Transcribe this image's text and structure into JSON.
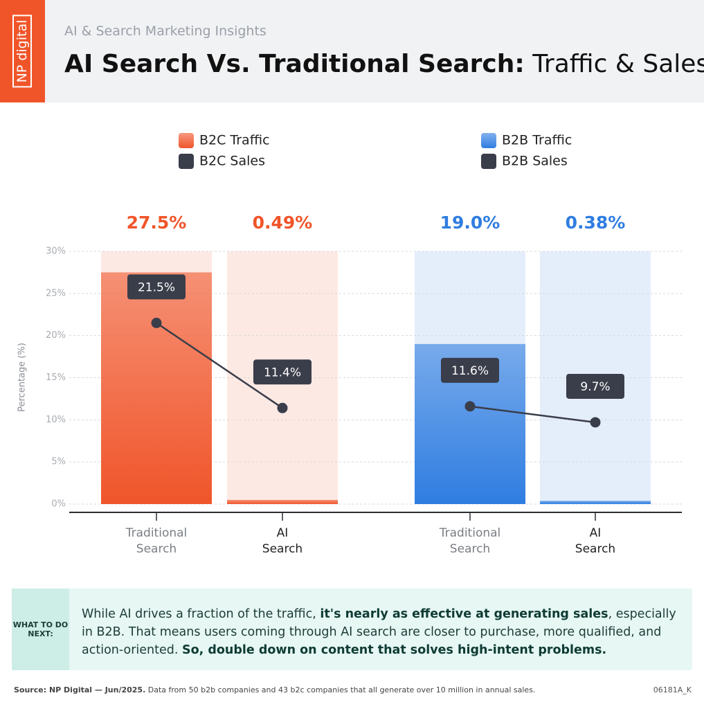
{
  "brand": "NP digital",
  "header": {
    "subtitle": "AI & Search Marketing Insights",
    "title_bold": "AI Search Vs. Traditional Search:",
    "title_rest": "Traffic & Sales"
  },
  "chart_data": {
    "type": "combo",
    "categories": [
      "Traditional Search",
      "AI Search",
      "Traditional Search",
      "AI Search"
    ],
    "y_label": "Percentage (%)",
    "ylim": [
      0,
      30
    ],
    "yticks": [
      {
        "value": 0,
        "label": "0%"
      },
      {
        "value": 5,
        "label": "5%"
      },
      {
        "value": 10,
        "label": "10%"
      },
      {
        "value": 15,
        "label": "15%"
      },
      {
        "value": 20,
        "label": "20%"
      },
      {
        "value": 25,
        "label": "25%"
      },
      {
        "value": 30,
        "label": "30%"
      }
    ],
    "grid": true,
    "series": [
      {
        "name": "B2C Traffic",
        "type": "bar",
        "color": "#f0552a",
        "values": [
          27.5,
          0.49,
          null,
          null
        ],
        "value_labels": [
          "27.5%",
          "0.49%",
          null,
          null
        ]
      },
      {
        "name": "B2C Sales",
        "type": "line",
        "color": "#3a3d4a",
        "values": [
          21.5,
          11.4,
          null,
          null
        ],
        "value_labels": [
          "21.5%",
          "11.4%",
          null,
          null
        ]
      },
      {
        "name": "B2B Traffic",
        "type": "bar",
        "color": "#2f7de1",
        "values": [
          null,
          null,
          19.0,
          0.38
        ],
        "value_labels": [
          null,
          null,
          "19.0%",
          "0.38%"
        ]
      },
      {
        "name": "B2B Sales",
        "type": "line",
        "color": "#3a3d4a",
        "values": [
          null,
          null,
          11.6,
          9.7
        ],
        "value_labels": [
          null,
          null,
          "11.6%",
          "9.7%"
        ]
      }
    ]
  },
  "note": {
    "label": "WHAT TO DO NEXT:",
    "text": [
      "While AI drives a fraction of the traffic, ",
      "it's nearly as effective at generating sales",
      ", especially in B2B. That means users coming through AI search are closer to purchase, more qualified, and action-oriented. ",
      "So, double down on content that solves high-intent problems."
    ]
  },
  "footer": {
    "source": "Source: NP Digital — Jun/2025.",
    "detail": " Data from 50 b2b companies and 43 b2c companies that all generate over 10 million in annual sales.",
    "code": "06181A_K"
  }
}
